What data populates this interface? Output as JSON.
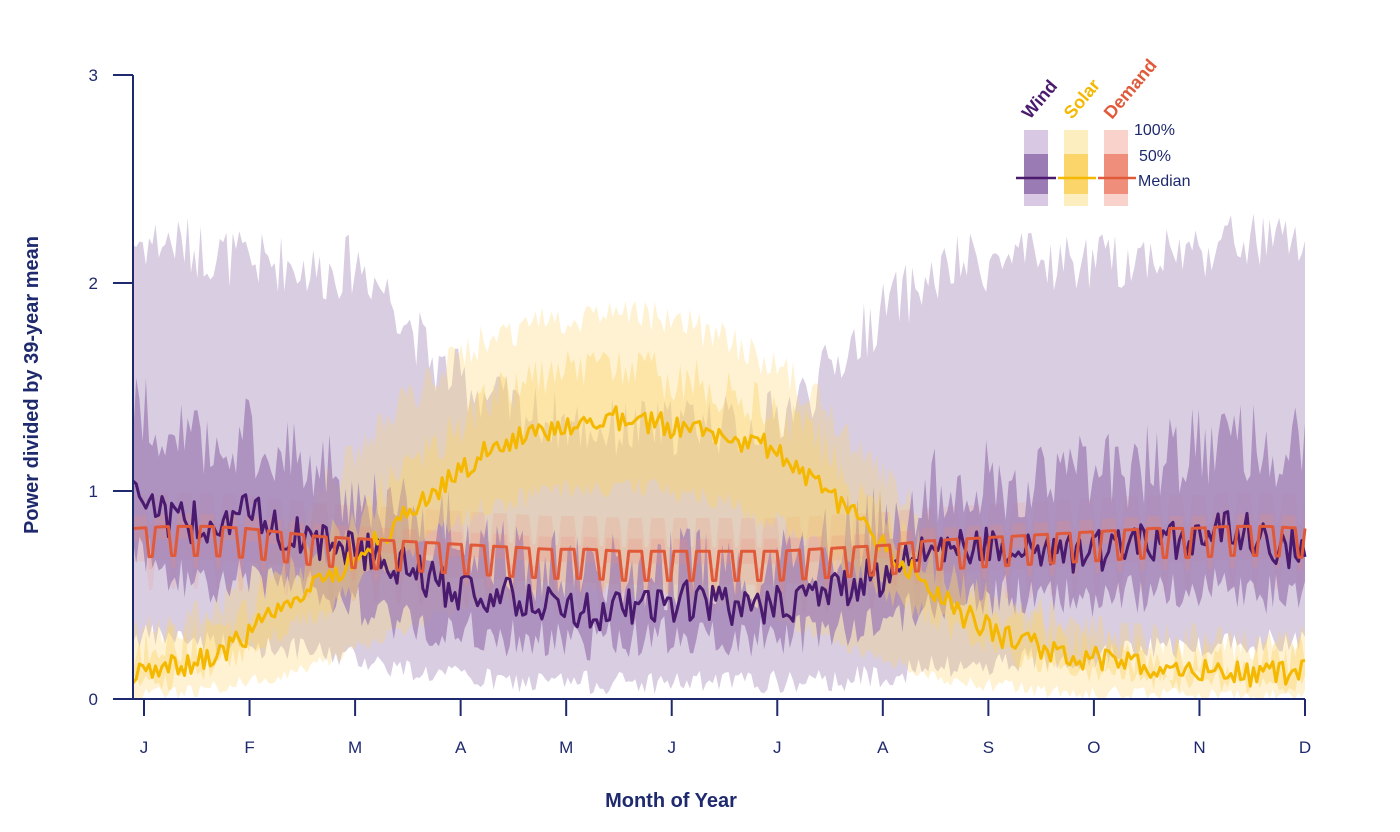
{
  "chart_data": {
    "type": "area",
    "xlabel": "Month of Year",
    "ylabel": "Power divided by 39-year mean",
    "ylim": [
      0,
      3
    ],
    "yticks": [
      "0",
      "1",
      "2",
      "3"
    ],
    "categories": [
      "J",
      "F",
      "M",
      "A",
      "M",
      "J",
      "J",
      "A",
      "S",
      "O",
      "N",
      "D"
    ],
    "legend": {
      "placement": "top-right",
      "entries": [
        "Wind",
        "Solar",
        "Demand"
      ],
      "band_labels": [
        "100%",
        "50%",
        "Median"
      ]
    },
    "series": [
      {
        "name": "Wind",
        "color": "#4a1a6e",
        "band_color": "#9b7bb4",
        "median": [
          1.05,
          0.85,
          0.85,
          0.9,
          0.8,
          0.75,
          0.72,
          0.65,
          0.55,
          0.52,
          0.48,
          0.45,
          0.42,
          0.43,
          0.45,
          0.48,
          0.42,
          0.45,
          0.5,
          0.55,
          0.6,
          0.75,
          0.72,
          0.75,
          0.72,
          0.7,
          0.72,
          0.75,
          0.78,
          0.85,
          0.75,
          0.7
        ],
        "p25": [
          0.75,
          0.6,
          0.55,
          0.6,
          0.55,
          0.52,
          0.45,
          0.38,
          0.35,
          0.32,
          0.3,
          0.28,
          0.28,
          0.3,
          0.3,
          0.32,
          0.3,
          0.3,
          0.32,
          0.35,
          0.4,
          0.45,
          0.45,
          0.5,
          0.5,
          0.48,
          0.5,
          0.5,
          0.52,
          0.55,
          0.5,
          0.5
        ],
        "p75": [
          1.4,
          1.3,
          1.2,
          1.25,
          1.2,
          1.1,
          1.0,
          0.9,
          0.85,
          0.75,
          0.7,
          0.65,
          0.6,
          0.6,
          0.62,
          0.65,
          0.6,
          0.65,
          0.72,
          0.8,
          0.85,
          1.0,
          1.05,
          1.05,
          1.05,
          1.1,
          1.1,
          1.15,
          1.2,
          1.25,
          1.2,
          1.25
        ],
        "min": [
          0.3,
          0.3,
          0.28,
          0.25,
          0.25,
          0.22,
          0.2,
          0.15,
          0.12,
          0.1,
          0.08,
          0.08,
          0.08,
          0.08,
          0.08,
          0.08,
          0.08,
          0.08,
          0.08,
          0.1,
          0.12,
          0.15,
          0.15,
          0.18,
          0.2,
          0.2,
          0.22,
          0.25,
          0.25,
          0.28,
          0.28,
          0.3
        ],
        "max": [
          2.2,
          2.2,
          2.15,
          2.1,
          2.1,
          2.05,
          2.1,
          1.9,
          1.6,
          1.5,
          1.4,
          1.35,
          1.3,
          1.3,
          1.3,
          1.35,
          1.3,
          1.35,
          1.5,
          1.7,
          1.9,
          2.0,
          2.1,
          2.1,
          2.1,
          2.1,
          2.1,
          2.15,
          2.15,
          2.2,
          2.2,
          2.2
        ]
      },
      {
        "name": "Solar",
        "color": "#f5b800",
        "band_color": "#fbd46a",
        "median": [
          0.12,
          0.15,
          0.2,
          0.3,
          0.45,
          0.55,
          0.7,
          0.85,
          1.0,
          1.15,
          1.25,
          1.3,
          1.35,
          1.35,
          1.32,
          1.3,
          1.25,
          1.2,
          1.05,
          0.9,
          0.7,
          0.55,
          0.4,
          0.3,
          0.25,
          0.2,
          0.18,
          0.15,
          0.13,
          0.12,
          0.12,
          0.14
        ],
        "p25": [
          0.07,
          0.1,
          0.14,
          0.22,
          0.32,
          0.42,
          0.55,
          0.68,
          0.8,
          0.9,
          0.95,
          1.0,
          1.02,
          1.02,
          1.0,
          0.98,
          0.92,
          0.85,
          0.75,
          0.62,
          0.5,
          0.4,
          0.3,
          0.22,
          0.17,
          0.14,
          0.12,
          0.1,
          0.09,
          0.08,
          0.08,
          0.08
        ],
        "p75": [
          0.2,
          0.24,
          0.3,
          0.42,
          0.58,
          0.72,
          0.88,
          1.05,
          1.22,
          1.38,
          1.5,
          1.55,
          1.58,
          1.58,
          1.55,
          1.52,
          1.45,
          1.38,
          1.25,
          1.05,
          0.85,
          0.7,
          0.52,
          0.4,
          0.32,
          0.26,
          0.22,
          0.2,
          0.18,
          0.17,
          0.17,
          0.2
        ],
        "min": [
          0.02,
          0.03,
          0.05,
          0.08,
          0.12,
          0.18,
          0.25,
          0.32,
          0.4,
          0.45,
          0.5,
          0.5,
          0.52,
          0.52,
          0.5,
          0.48,
          0.45,
          0.4,
          0.32,
          0.25,
          0.18,
          0.12,
          0.08,
          0.06,
          0.04,
          0.03,
          0.03,
          0.02,
          0.02,
          0.02,
          0.02,
          0.02
        ],
        "max": [
          0.3,
          0.35,
          0.42,
          0.6,
          0.8,
          1.0,
          1.2,
          1.4,
          1.55,
          1.7,
          1.78,
          1.82,
          1.85,
          1.85,
          1.82,
          1.78,
          1.7,
          1.6,
          1.45,
          1.25,
          1.05,
          0.85,
          0.65,
          0.5,
          0.42,
          0.35,
          0.32,
          0.3,
          0.28,
          0.27,
          0.27,
          0.3
        ]
      },
      {
        "name": "Demand",
        "color": "#e05a3a",
        "band_color": "#ef8f7b",
        "base": [
          0.82,
          0.83,
          0.83,
          0.82,
          0.8,
          0.78,
          0.77,
          0.76,
          0.75,
          0.74,
          0.73,
          0.72,
          0.72,
          0.71,
          0.71,
          0.71,
          0.71,
          0.71,
          0.72,
          0.73,
          0.74,
          0.76,
          0.77,
          0.78,
          0.79,
          0.8,
          0.81,
          0.82,
          0.82,
          0.83,
          0.83,
          0.82
        ],
        "band_half_width_50": 0.06,
        "band_half_width_100": 0.16
      }
    ]
  }
}
